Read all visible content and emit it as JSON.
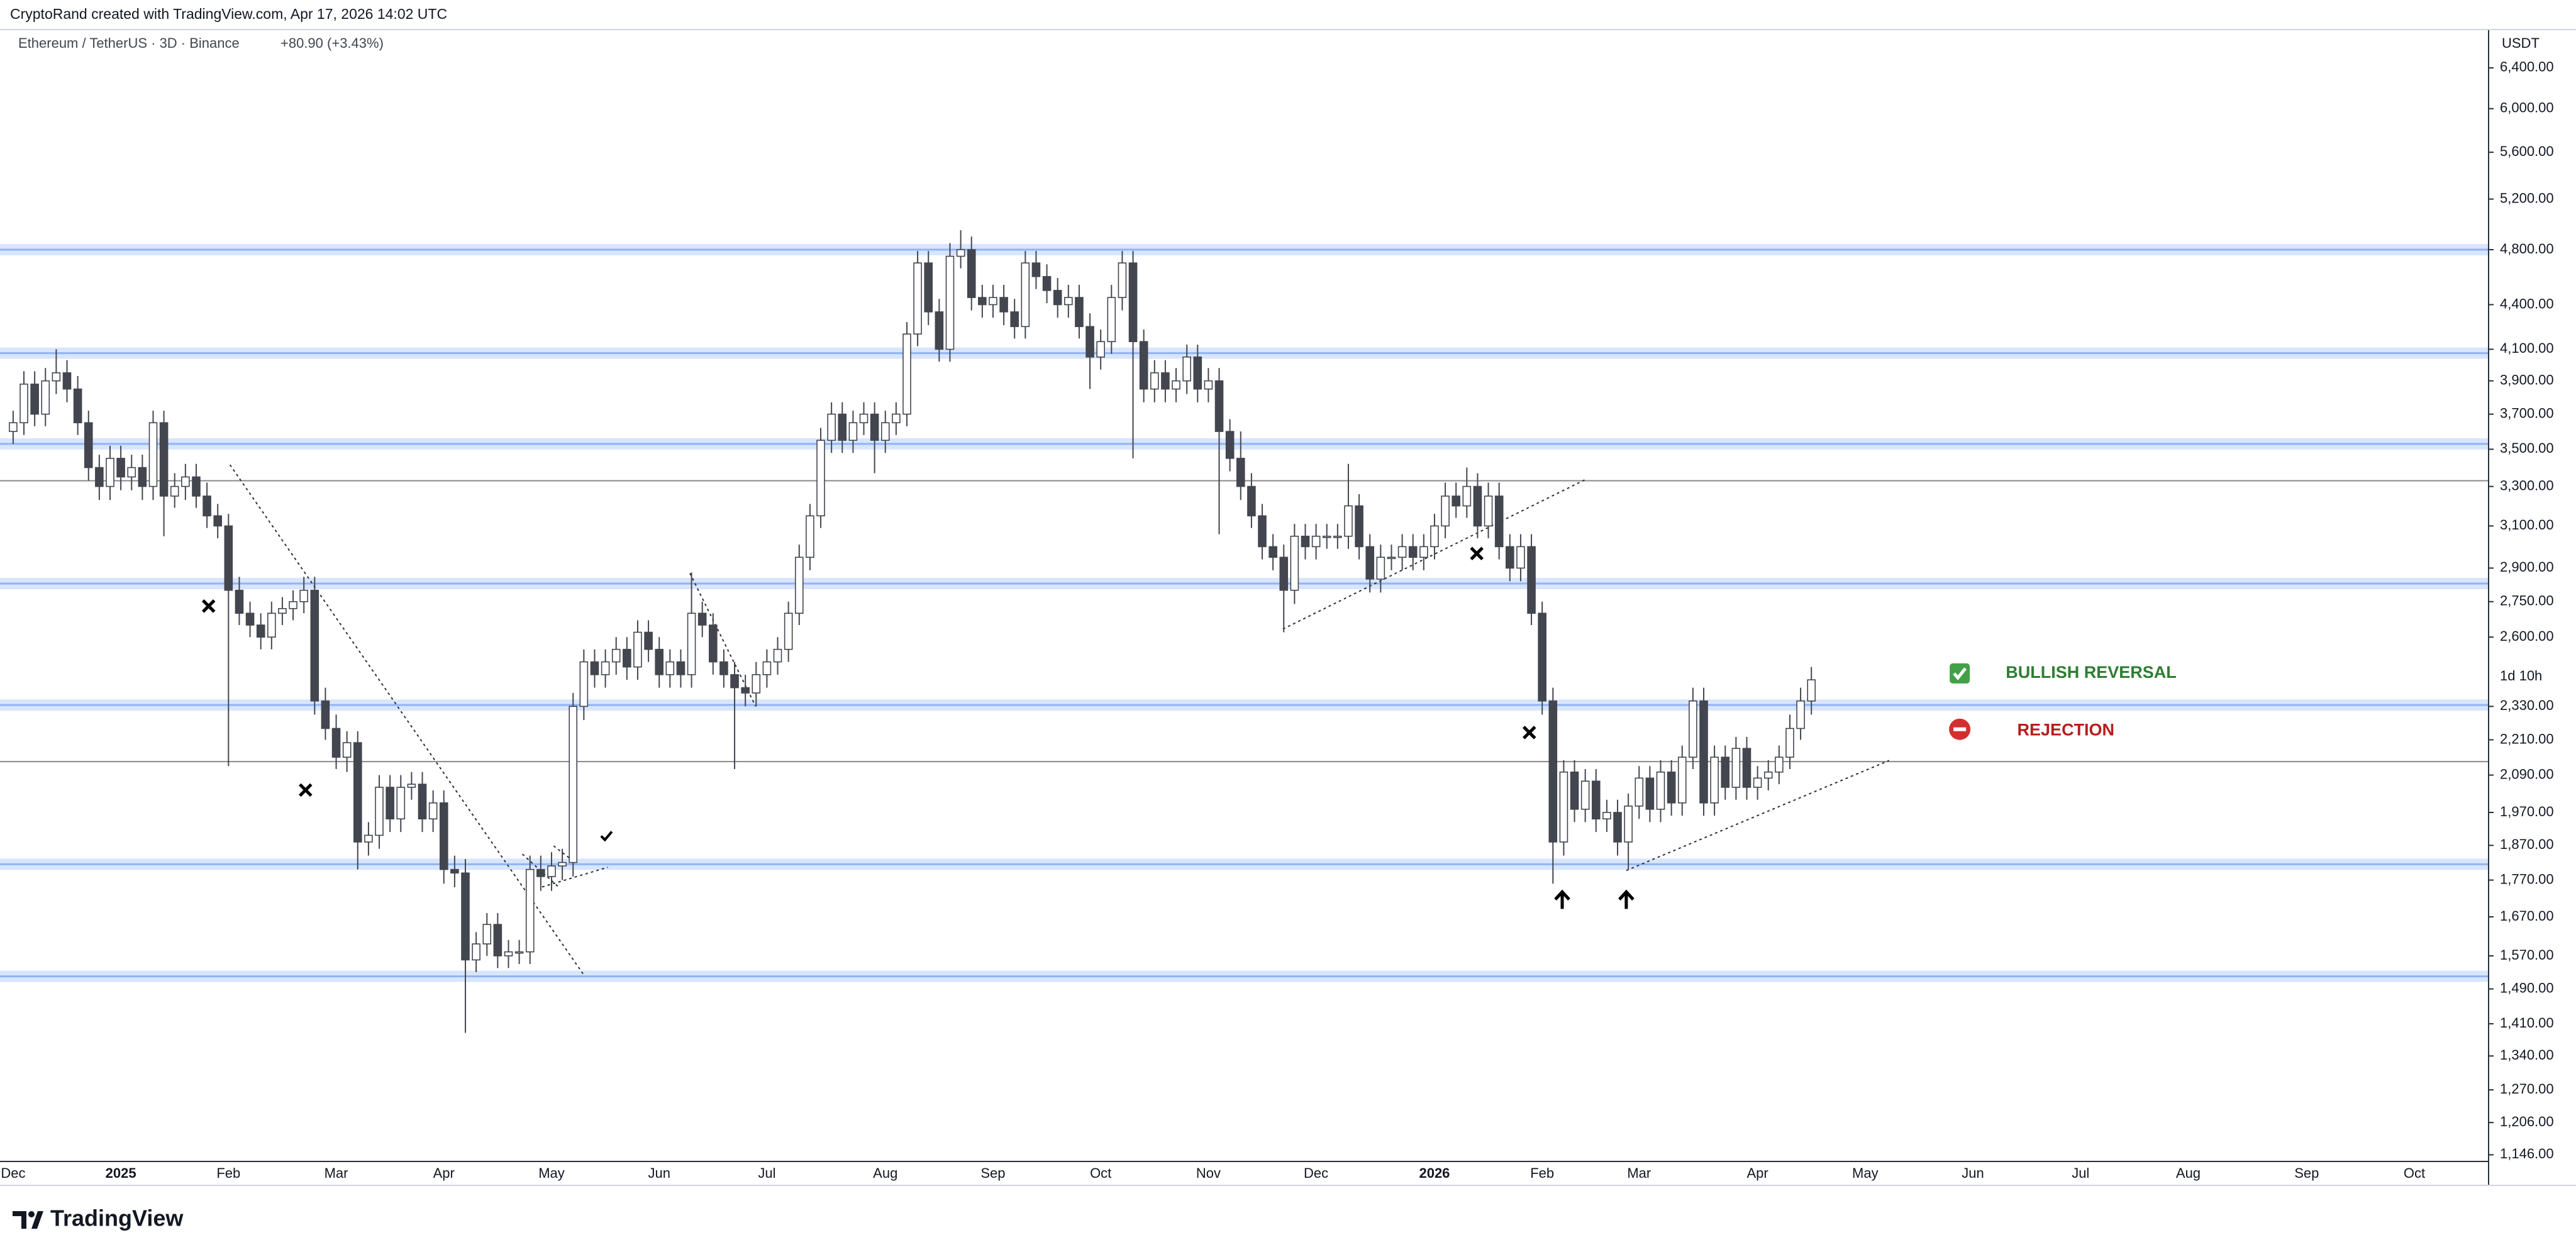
{
  "chart_data": {
    "type": "candlestick",
    "header": "CryptoRand created with TradingView.com, Apr 17, 2026 14:02 UTC",
    "title": "Ethereum / TetherUS · 3D · Binance",
    "change": "+80.90 (+3.43%)",
    "y_unit": "USDT",
    "countdown": "1d 10h",
    "brand": "TradingView",
    "annotations": [
      {
        "text": "BULLISH REVERSAL",
        "color": "#2e7d32"
      },
      {
        "text": "REJECTION",
        "color": "#b71c1c"
      }
    ],
    "log_scale": true,
    "grid": false,
    "up_color": "#ffffff",
    "down_color": "#43464f",
    "wick_color": "#43464f",
    "zone_color": "#90b4f5",
    "line_color": "#8a8a8a",
    "zones": [
      4800,
      4075,
      3530,
      2830,
      2335,
      1815,
      1520
    ],
    "lines": [
      3330,
      2135
    ],
    "ylim": [
      1134,
      6800
    ],
    "yticks": [
      {
        "value": 6400,
        "label": "6,400.00"
      },
      {
        "value": 6000,
        "label": "6,000.00"
      },
      {
        "value": 5600,
        "label": "5,600.00"
      },
      {
        "value": 5200,
        "label": "5,200.00"
      },
      {
        "value": 4800,
        "label": "4,800.00"
      },
      {
        "value": 4400,
        "label": "4,400.00"
      },
      {
        "value": 4100,
        "label": "4,100.00"
      },
      {
        "value": 3900,
        "label": "3,900.00"
      },
      {
        "value": 3700,
        "label": "3,700.00"
      },
      {
        "value": 3500,
        "label": "3,500.00"
      },
      {
        "value": 3300,
        "label": "3,300.00"
      },
      {
        "value": 3100,
        "label": "3,100.00"
      },
      {
        "value": 2900,
        "label": "2,900.00"
      },
      {
        "value": 2750,
        "label": "2,750.00"
      },
      {
        "value": 2600,
        "label": "2,600.00"
      },
      {
        "value": 2330,
        "label": "2,330.00"
      },
      {
        "value": 2210,
        "label": "2,210.00"
      },
      {
        "value": 2090,
        "label": "2,090.00"
      },
      {
        "value": 1970,
        "label": "1,970.00"
      },
      {
        "value": 1870,
        "label": "1,870.00"
      },
      {
        "value": 1770,
        "label": "1,770.00"
      },
      {
        "value": 1670,
        "label": "1,670.00"
      },
      {
        "value": 1570,
        "label": "1,570.00"
      },
      {
        "value": 1490,
        "label": "1,490.00"
      },
      {
        "value": 1410,
        "label": "1,410.00"
      },
      {
        "value": 1340,
        "label": "1,340.00"
      },
      {
        "value": 1270,
        "label": "1,270.00"
      },
      {
        "value": 1206,
        "label": "1,206.00"
      },
      {
        "value": 1146,
        "label": "1,146.00"
      }
    ],
    "categories": [
      "Dec",
      null,
      null,
      null,
      null,
      null,
      null,
      null,
      null,
      null,
      "2025",
      null,
      null,
      null,
      null,
      null,
      null,
      null,
      null,
      null,
      "Feb",
      null,
      null,
      null,
      null,
      null,
      null,
      null,
      null,
      null,
      "Mar",
      null,
      null,
      null,
      null,
      null,
      null,
      null,
      null,
      null,
      "Apr",
      null,
      null,
      null,
      null,
      null,
      null,
      null,
      null,
      null,
      "May",
      null,
      null,
      null,
      null,
      null,
      null,
      null,
      null,
      null,
      "Jun",
      null,
      null,
      null,
      null,
      null,
      null,
      null,
      null,
      null,
      "Jul",
      null,
      null,
      null,
      null,
      null,
      null,
      null,
      null,
      null,
      null,
      "Aug",
      null,
      null,
      null,
      null,
      null,
      null,
      null,
      null,
      null,
      "Sep",
      null,
      null,
      null,
      null,
      null,
      null,
      null,
      null,
      null,
      "Oct",
      null,
      null,
      null,
      null,
      null,
      null,
      null,
      null,
      null,
      "Nov",
      null,
      null,
      null,
      null,
      null,
      null,
      null,
      null,
      null,
      "Dec",
      null,
      null,
      null,
      null,
      null,
      null,
      null,
      null,
      null,
      null,
      "2026",
      null,
      null,
      null,
      null,
      null,
      null,
      null,
      null,
      null,
      "Feb",
      null,
      null,
      null,
      null,
      null,
      null,
      null,
      null,
      "Mar",
      null,
      null,
      null,
      null,
      null,
      null,
      null,
      null,
      null,
      null,
      "Apr",
      null,
      null,
      null,
      null,
      null,
      null,
      null,
      null,
      null,
      "May",
      null,
      null,
      null,
      null,
      null,
      null,
      null,
      null,
      null,
      "Jun",
      null,
      null,
      null,
      null,
      null,
      null,
      null,
      null,
      null,
      "Jul",
      null,
      null,
      null,
      null,
      null,
      null,
      null,
      null,
      null,
      "Aug",
      null,
      null,
      null,
      null,
      null,
      null,
      null,
      null,
      null,
      null,
      "Sep",
      null,
      null,
      null,
      null,
      null,
      null,
      null,
      null,
      null,
      "Oct",
      null,
      null,
      null,
      null,
      null,
      null,
      null
    ],
    "open": [
      3600,
      3650,
      3880,
      3700,
      3900,
      3950,
      3850,
      3650,
      3400,
      3300,
      3450,
      3350,
      3400,
      3300,
      3650,
      3250,
      3300,
      3350,
      3250,
      3150,
      3100,
      2800,
      2700,
      2650,
      2600,
      2700,
      2720,
      2750,
      2800,
      2350,
      2250,
      2150,
      2200,
      1880,
      1900,
      2050,
      1950,
      2050,
      2060,
      1950,
      2000,
      1800,
      1790,
      1560,
      1600,
      1650,
      1570,
      1580,
      1580,
      1800,
      1780,
      1810,
      1820,
      2330,
      2500,
      2450,
      2500,
      2550,
      2480,
      2620,
      2550,
      2450,
      2500,
      2450,
      2700,
      2650,
      2500,
      2450,
      2400,
      2380,
      2450,
      2500,
      2550,
      2700,
      2950,
      3150,
      3550,
      3700,
      3550,
      3650,
      3700,
      3550,
      3650,
      3700,
      4200,
      4700,
      4350,
      4100,
      4750,
      4800,
      4450,
      4400,
      4450,
      4350,
      4250,
      4700,
      4600,
      4500,
      4400,
      4450,
      4250,
      4050,
      4150,
      4450,
      4700,
      4150,
      3850,
      3950,
      3850,
      3900,
      4050,
      3850,
      3900,
      3600,
      3450,
      3300,
      3150,
      3000,
      2950,
      2800,
      3050,
      3000,
      3050,
      3050,
      3050,
      3200,
      3000,
      2850,
      2950,
      2950,
      3000,
      2950,
      3000,
      3100,
      3250,
      3200,
      3300,
      3100,
      3250,
      3000,
      2900,
      3000,
      2700,
      2350,
      1880,
      2100,
      1980,
      2070,
      1950,
      1970,
      1880,
      1990,
      2080,
      1980,
      2100,
      2000,
      2150,
      2350,
      2000,
      2150,
      2050,
      2180,
      2050,
      2080,
      2100,
      2150,
      2250,
      2350,
      null,
      null,
      null,
      null,
      null,
      null,
      null,
      null,
      null,
      null,
      null,
      null,
      null,
      null,
      null,
      null,
      null,
      null,
      null,
      null,
      null,
      null,
      null,
      null,
      null,
      null,
      null,
      null,
      null,
      null,
      null,
      null,
      null,
      null,
      null,
      null,
      null,
      null,
      null,
      null,
      null,
      null,
      null,
      null,
      null,
      null,
      null,
      null,
      null,
      null,
      null,
      null,
      null,
      null,
      null,
      null,
      null,
      null,
      null,
      null,
      null,
      null,
      null
    ],
    "high": [
      3720,
      3960,
      3960,
      3980,
      4100,
      4030,
      3930,
      3720,
      3470,
      3520,
      3520,
      3470,
      3470,
      3720,
      3720,
      3370,
      3420,
      3420,
      3320,
      3210,
      3160,
      2860,
      2750,
      2700,
      2750,
      2770,
      2800,
      2860,
      2860,
      2400,
      2300,
      2240,
      2240,
      1940,
      2090,
      2090,
      2090,
      2100,
      2100,
      2040,
      2040,
      1840,
      1830,
      1630,
      1680,
      1680,
      1610,
      1610,
      1840,
      1840,
      1850,
      1860,
      2380,
      2550,
      2550,
      2550,
      2600,
      2600,
      2670,
      2670,
      2600,
      2550,
      2550,
      2880,
      2750,
      2700,
      2550,
      2500,
      2450,
      2500,
      2550,
      2600,
      2750,
      3010,
      3210,
      3620,
      3770,
      3770,
      3720,
      3770,
      3770,
      3720,
      3770,
      4280,
      4790,
      4790,
      4440,
      4850,
      4950,
      4900,
      4540,
      4540,
      4540,
      4440,
      4790,
      4790,
      4690,
      4590,
      4540,
      4540,
      4340,
      4230,
      4540,
      4790,
      4790,
      4230,
      4030,
      4030,
      3980,
      4130,
      4130,
      3980,
      3980,
      3670,
      3600,
      3370,
      3210,
      3060,
      3010,
      3110,
      3110,
      3110,
      3110,
      3110,
      3420,
      3260,
      3060,
      3010,
      3010,
      3060,
      3060,
      3060,
      3160,
      3320,
      3320,
      3400,
      3370,
      3320,
      3320,
      3060,
      3060,
      3060,
      2750,
      2400,
      2140,
      2140,
      2110,
      2110,
      2010,
      2010,
      2030,
      2120,
      2120,
      2140,
      2140,
      2190,
      2400,
      2400,
      2190,
      2190,
      2220,
      2220,
      2120,
      2140,
      2190,
      2300,
      2400,
      2480,
      null,
      null,
      null,
      null,
      null,
      null,
      null,
      null,
      null,
      null,
      null,
      null,
      null,
      null,
      null,
      null,
      null,
      null,
      null,
      null,
      null,
      null,
      null,
      null,
      null,
      null,
      null,
      null,
      null,
      null,
      null,
      null,
      null,
      null,
      null,
      null,
      null,
      null,
      null,
      null,
      null,
      null,
      null,
      null,
      null,
      null,
      null,
      null,
      null,
      null,
      null,
      null,
      null,
      null,
      null,
      null,
      null,
      null,
      null,
      null,
      null,
      null,
      null
    ],
    "low": [
      3530,
      3580,
      3630,
      3630,
      3820,
      3770,
      3580,
      3330,
      3230,
      3230,
      3280,
      3280,
      3230,
      3230,
      3050,
      3190,
      3230,
      3190,
      3090,
      3040,
      2120,
      2650,
      2600,
      2550,
      2550,
      2650,
      2670,
      2700,
      2300,
      2210,
      2110,
      2100,
      1800,
      1840,
      1860,
      1910,
      1910,
      2010,
      1910,
      1910,
      1760,
      1750,
      1390,
      1530,
      1570,
      1540,
      1540,
      1550,
      1550,
      1740,
      1740,
      1770,
      1780,
      2280,
      2400,
      2400,
      2450,
      2430,
      2430,
      2500,
      2400,
      2400,
      2400,
      2400,
      2600,
      2450,
      2400,
      2110,
      2330,
      2330,
      2400,
      2450,
      2500,
      2650,
      2890,
      3090,
      3480,
      3480,
      3480,
      3580,
      3370,
      3480,
      3580,
      3630,
      4120,
      4260,
      4020,
      4020,
      4660,
      4360,
      4310,
      4310,
      4260,
      4170,
      4170,
      4510,
      4410,
      4310,
      4310,
      4170,
      3850,
      3970,
      4070,
      4360,
      3450,
      3770,
      3770,
      3770,
      3770,
      3820,
      3770,
      3770,
      3060,
      3380,
      3230,
      3090,
      2940,
      2890,
      2620,
      2740,
      2940,
      2940,
      2990,
      2990,
      2990,
      2940,
      2790,
      2790,
      2890,
      2890,
      2890,
      2890,
      2940,
      3040,
      3140,
      3140,
      3040,
      3040,
      2940,
      2840,
      2840,
      2650,
      2300,
      1760,
      1840,
      1940,
      1940,
      1910,
      1910,
      1840,
      1800,
      1950,
      1940,
      1940,
      1960,
      1960,
      2110,
      1960,
      1960,
      2010,
      2010,
      2010,
      2010,
      2040,
      2060,
      2110,
      2210,
      2300,
      null,
      null,
      null,
      null,
      null,
      null,
      null,
      null,
      null,
      null,
      null,
      null,
      null,
      null,
      null,
      null,
      null,
      null,
      null,
      null,
      null,
      null,
      null,
      null,
      null,
      null,
      null,
      null,
      null,
      null,
      null,
      null,
      null,
      null,
      null,
      null,
      null,
      null,
      null,
      null,
      null,
      null,
      null,
      null,
      null,
      null,
      null,
      null,
      null,
      null,
      null,
      null,
      null,
      null,
      null,
      null,
      null,
      null,
      null,
      null,
      null,
      null,
      null
    ],
    "close": [
      3650,
      3880,
      3700,
      3900,
      3950,
      3850,
      3650,
      3400,
      3300,
      3450,
      3350,
      3400,
      3300,
      3650,
      3250,
      3300,
      3350,
      3250,
      3150,
      3100,
      2800,
      2700,
      2650,
      2600,
      2700,
      2720,
      2750,
      2800,
      2350,
      2250,
      2150,
      2200,
      1880,
      1900,
      2050,
      1950,
      2050,
      2060,
      1950,
      2000,
      1800,
      1790,
      1560,
      1600,
      1650,
      1570,
      1580,
      1580,
      1800,
      1780,
      1810,
      1820,
      2330,
      2500,
      2450,
      2500,
      2550,
      2480,
      2620,
      2550,
      2450,
      2500,
      2450,
      2700,
      2650,
      2500,
      2450,
      2400,
      2380,
      2450,
      2500,
      2550,
      2700,
      2950,
      3150,
      3550,
      3700,
      3550,
      3650,
      3700,
      3550,
      3650,
      3700,
      4200,
      4700,
      4350,
      4100,
      4750,
      4800,
      4450,
      4400,
      4450,
      4350,
      4250,
      4700,
      4600,
      4500,
      4400,
      4450,
      4250,
      4050,
      4150,
      4450,
      4700,
      4150,
      3850,
      3950,
      3850,
      3900,
      4050,
      3850,
      3900,
      3600,
      3450,
      3300,
      3150,
      3000,
      2950,
      2800,
      3050,
      3000,
      3050,
      3050,
      3050,
      3200,
      3000,
      2850,
      2950,
      2950,
      3000,
      2950,
      3000,
      3100,
      3250,
      3200,
      3300,
      3100,
      3250,
      3000,
      2900,
      3000,
      2700,
      2350,
      1880,
      2100,
      1980,
      2070,
      1950,
      1970,
      1880,
      1990,
      2080,
      1980,
      2100,
      2000,
      2150,
      2350,
      2000,
      2150,
      2050,
      2180,
      2050,
      2080,
      2100,
      2150,
      2250,
      2350,
      2430,
      null,
      null,
      null,
      null,
      null,
      null,
      null,
      null,
      null,
      null,
      null,
      null,
      null,
      null,
      null,
      null,
      null,
      null,
      null,
      null,
      null,
      null,
      null,
      null,
      null,
      null,
      null,
      null,
      null,
      null,
      null,
      null,
      null,
      null,
      null,
      null,
      null,
      null,
      null,
      null,
      null,
      null,
      null,
      null,
      null,
      null,
      null,
      null,
      null,
      null,
      null,
      null,
      null,
      null,
      null,
      null,
      null,
      null,
      null,
      null,
      null,
      null,
      null
    ]
  }
}
